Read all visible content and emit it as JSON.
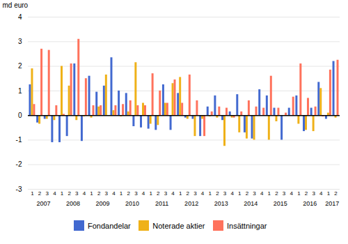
{
  "chart_data": {
    "type": "bar",
    "ylabel": "md euro",
    "categories": [
      "1",
      "2",
      "3",
      "4",
      "1",
      "2",
      "3",
      "4",
      "1",
      "2",
      "3",
      "4",
      "1",
      "2",
      "3",
      "4",
      "1",
      "2",
      "3",
      "4",
      "1",
      "2",
      "3",
      "4",
      "1",
      "2",
      "3",
      "4",
      "1",
      "2",
      "3",
      "4",
      "1",
      "2",
      "3",
      "4",
      "1",
      "2",
      "3",
      "4",
      "1",
      "2"
    ],
    "group_labels": [
      "2007",
      "2008",
      "2009",
      "2010",
      "2011",
      "2012",
      "2013",
      "2014",
      "2015",
      "2016",
      "2017"
    ],
    "group_sizes": [
      4,
      4,
      4,
      4,
      4,
      4,
      4,
      4,
      4,
      4,
      2
    ],
    "series": [
      {
        "name": "Fondandelar",
        "values": [
          1.25,
          -0.3,
          -0.15,
          -1.1,
          -1.1,
          -0.85,
          2.1,
          -1.05,
          1.6,
          0.95,
          1.2,
          2.35,
          1.0,
          0.9,
          -0.45,
          -0.5,
          -0.55,
          -0.6,
          1.25,
          -0.6,
          0.9,
          -0.1,
          -0.15,
          -0.85,
          0.35,
          0.8,
          -0.2,
          0.15,
          0.85,
          -0.7,
          -0.95,
          1.05,
          0.8,
          0.3,
          -1.0,
          0.3,
          0.8,
          -0.65,
          0.3,
          1.35,
          -0.15,
          2.2
        ]
      },
      {
        "name": "Noterade aktier",
        "values": [
          1.9,
          -0.35,
          -0.15,
          -0.2,
          2.0,
          1.2,
          -0.2,
          -0.05,
          -0.1,
          0.35,
          1.65,
          0.2,
          -0.05,
          0.15,
          2.15,
          0.5,
          -0.35,
          -0.4,
          0.5,
          1.3,
          1.55,
          -0.15,
          -0.85,
          -0.15,
          -0.05,
          -0.1,
          -1.25,
          -0.1,
          -0.7,
          -0.95,
          -1.0,
          0.0,
          -1.0,
          -0.25,
          0.0,
          0.0,
          -0.35,
          -0.6,
          -0.65,
          1.1,
          0.1,
          -0.1
        ]
      },
      {
        "name": "Insättningar",
        "values": [
          0.45,
          2.7,
          2.65,
          0.4,
          0.05,
          2.1,
          3.1,
          1.5,
          0.4,
          0.4,
          0.0,
          0.4,
          0.45,
          0.6,
          0.4,
          0.4,
          1.7,
          1.0,
          0.5,
          1.45,
          0.5,
          1.65,
          0.6,
          -0.85,
          0.15,
          0.35,
          0.3,
          -0.1,
          0.15,
          0.6,
          0.35,
          0.3,
          1.6,
          0.3,
          0.1,
          0.75,
          2.1,
          0.7,
          0.35,
          -0.05,
          1.85,
          2.25
        ]
      }
    ],
    "ylim": [
      -3,
      4
    ],
    "yticks": [
      -3,
      -2,
      -1,
      0,
      1,
      2,
      3,
      4
    ],
    "grid": true,
    "legend": "bottom"
  }
}
